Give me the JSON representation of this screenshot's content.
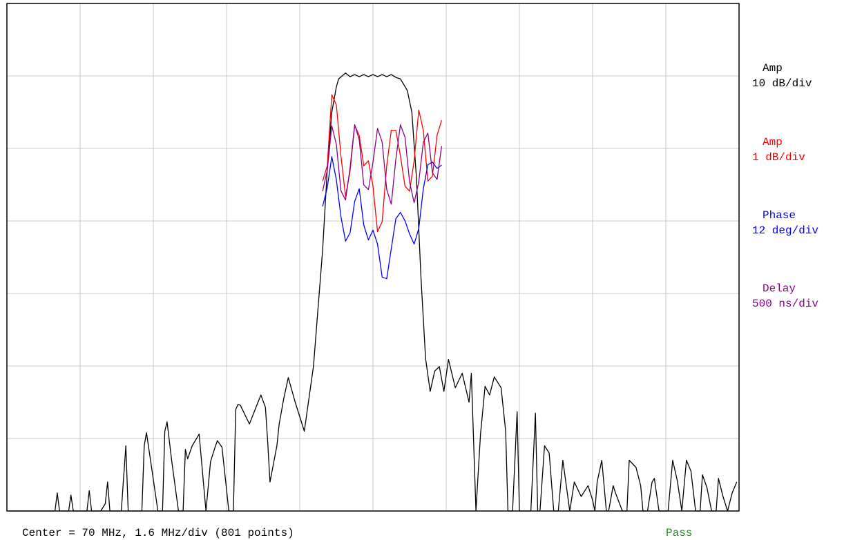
{
  "chart_data": {
    "type": "line",
    "title": "",
    "xlabel": "",
    "ylabel": "",
    "center_mhz": 70,
    "mhz_per_div": 1.6,
    "points": 801,
    "xlim_mhz": [
      62.0,
      78.0
    ],
    "grid": true,
    "legend": "right",
    "divisions": {
      "x": 10,
      "y": 7
    },
    "footer_text": "Center = 70 MHz, 1.6 MHz/div (801 points)",
    "status": {
      "text": "Pass",
      "color": "#228B22"
    },
    "scales": [
      {
        "name": "Amp",
        "unit": "10 dB/div",
        "color": "#000000"
      },
      {
        "name": "Amp",
        "unit": "1 dB/div",
        "color": "#FF0000"
      },
      {
        "name": "Phase",
        "unit": "12 deg/div",
        "color": "#0000FF"
      },
      {
        "name": "Delay",
        "unit": "500 ns/div",
        "color": "#8B008B"
      }
    ],
    "series": [
      {
        "name": "Amp",
        "color": "#000000",
        "unit": "dB",
        "ref_db": 0,
        "ylim": [
          -60,
          10
        ],
        "x": [
          62.05,
          62.35,
          62.4,
          62.45,
          62.55,
          62.7,
          62.9,
          63.05,
          63.1,
          63.15,
          63.25,
          63.35,
          63.4,
          63.45,
          63.6,
          63.75,
          63.8,
          63.85,
          63.95,
          64.05,
          64.15,
          64.2,
          64.25,
          64.35,
          64.5,
          64.55,
          64.6,
          64.65,
          64.8,
          64.95,
          65.0,
          65.05,
          65.15,
          65.3,
          65.4,
          65.45,
          65.5,
          65.6,
          65.75,
          65.85,
          65.9,
          65.95,
          66.05,
          66.2,
          66.35,
          66.45,
          66.55,
          66.6,
          66.7,
          66.85,
          66.95,
          67.0,
          67.05,
          67.1,
          67.3,
          67.55,
          67.65,
          67.7,
          67.75,
          67.9,
          67.95,
          68.05,
          68.15,
          68.3,
          68.5,
          68.7,
          68.9,
          69.0,
          69.1,
          69.2,
          69.25,
          69.4,
          69.5,
          69.6,
          69.7,
          69.8,
          69.9,
          70.0,
          70.1,
          70.2,
          70.3,
          70.4,
          70.5,
          70.6,
          70.75,
          70.85,
          70.95,
          71.05,
          71.15,
          71.25,
          71.35,
          71.45,
          71.55,
          71.65,
          71.8,
          71.95,
          72.1,
          72.15,
          72.25,
          72.35,
          72.45,
          72.55,
          72.65,
          72.8,
          72.9,
          72.95,
          73.0,
          73.05,
          73.15,
          73.2,
          73.35,
          73.45,
          73.55,
          73.6,
          73.65,
          73.75,
          73.85,
          73.95,
          74.05,
          74.15,
          74.3,
          74.4,
          74.55,
          74.7,
          74.8,
          74.85,
          74.9,
          75.0,
          75.1,
          75.15,
          75.25,
          75.3,
          75.45,
          75.55,
          75.6,
          75.75,
          75.85,
          75.9,
          76.0,
          76.1,
          76.15,
          76.25,
          76.35,
          76.45,
          76.55,
          76.65,
          76.75,
          76.85,
          76.95,
          77.05,
          77.15,
          77.2,
          77.3,
          77.4,
          77.5,
          77.55,
          77.65,
          77.75,
          77.85,
          77.95
        ],
        "y": [
          -60,
          -60,
          -60,
          -60,
          -60,
          -60,
          -60,
          -60,
          -57.5,
          -60,
          -60,
          -60,
          -57.8,
          -60,
          -60,
          -60,
          -57.2,
          -60,
          -60,
          -60,
          -59,
          -56,
          -60,
          -60,
          -60,
          -55.5,
          -51,
          -60,
          -60,
          -60,
          -51,
          -49.2,
          -53.5,
          -60,
          -60,
          -49,
          -47.7,
          -53,
          -60,
          -60,
          -51.5,
          -52.8,
          -51,
          -49.4,
          -60,
          -53.2,
          -51.2,
          -50.3,
          -51.2,
          -60,
          -60,
          -46,
          -45.3,
          -45.4,
          -48,
          -44,
          -45.7,
          -50.5,
          -56,
          -51,
          -48,
          -44.5,
          -41.6,
          -45,
          -49,
          -40,
          -24,
          -13,
          -5,
          -1.5,
          -0.4,
          0.4,
          -0.1,
          0.2,
          -0.1,
          0.2,
          -0.1,
          0.2,
          -0.1,
          0.2,
          -0.1,
          0.2,
          -0.2,
          -0.4,
          -2,
          -5,
          -14,
          -28,
          -39,
          -43.5,
          -40.7,
          -40.1,
          -43.5,
          -39.1,
          -43,
          -41,
          -45,
          -41,
          -60,
          -49.4,
          -42.8,
          -44,
          -41.5,
          -43,
          -49,
          -60,
          -60,
          -60,
          -46.3,
          -60,
          -60,
          -60,
          -46.5,
          -60,
          -60,
          -51,
          -52,
          -60,
          -60,
          -53,
          -60,
          -56,
          -58,
          -56.5,
          -58.5,
          -60,
          -56,
          -53,
          -60,
          -60,
          -56.5,
          -57.5,
          -60,
          -60,
          -53,
          -54,
          -56.5,
          -60,
          -60,
          -56,
          -55.5,
          -60,
          -60,
          -60,
          -53,
          -55.8,
          -60,
          -53,
          -54.5,
          -60,
          -60,
          -55,
          -56.8,
          -60,
          -60,
          -55.5,
          -58,
          -60,
          -57.5,
          -56
        ]
      },
      {
        "name": "Amp",
        "color": "#FF0000",
        "unit": "dB",
        "ref_db": -1,
        "ylim": [
          -8,
          2
        ],
        "x": [
          68.9,
          69.0,
          69.1,
          69.2,
          69.3,
          69.4,
          69.5,
          69.6,
          69.7,
          69.8,
          69.9,
          70.0,
          70.1,
          70.2,
          70.3,
          70.4,
          70.5,
          70.6,
          70.7,
          70.8,
          70.9,
          71.0,
          71.1,
          71.2,
          71.3,
          71.4,
          71.5
        ],
        "y": [
          -1.5,
          -1.2,
          0.2,
          0.0,
          -1.0,
          -1.8,
          -1.3,
          -0.4,
          -0.6,
          -1.2,
          -1.1,
          -1.6,
          -2.5,
          -2.3,
          -1.2,
          -0.5,
          -0.5,
          -1.0,
          -1.6,
          -1.7,
          -1.1,
          -0.1,
          -0.5,
          -1.5,
          -1.4,
          -0.6,
          -0.3
        ]
      },
      {
        "name": "Phase",
        "color": "#0000FF",
        "unit": "deg",
        "ref_deg": 0,
        "ylim": [
          -84,
          36
        ],
        "x": [
          68.9,
          69.0,
          69.1,
          69.2,
          69.3,
          69.4,
          69.5,
          69.6,
          69.7,
          69.8,
          69.9,
          70.0,
          70.1,
          70.2,
          70.3,
          70.4,
          70.5,
          70.6,
          70.7,
          70.8,
          70.9,
          71.0,
          71.1,
          71.2,
          71.3,
          71.4,
          71.5
        ],
        "y": [
          -12.0,
          -7.6,
          -0.2,
          -5.7,
          -14.4,
          -20.2,
          -18.2,
          -10.8,
          -7.8,
          -16.4,
          -19.9,
          -17.6,
          -20.9,
          -28.7,
          -29.1,
          -22.0,
          -14.9,
          -13.4,
          -15.4,
          -18.5,
          -20.9,
          -17.2,
          -7.8,
          -2.1,
          -1.5,
          -3.0,
          -2.2
        ]
      },
      {
        "name": "Delay",
        "color": "#8B008B",
        "unit": "ns",
        "ref_ns": 0,
        "ylim": [
          -3500,
          1500
        ],
        "x": [
          68.9,
          69.0,
          69.1,
          69.2,
          69.3,
          69.4,
          69.5,
          69.6,
          69.7,
          69.8,
          69.9,
          70.0,
          70.1,
          70.2,
          70.3,
          70.4,
          70.5,
          70.6,
          70.7,
          70.8,
          70.9,
          71.0,
          71.1,
          71.2,
          71.3,
          71.4,
          71.5
        ],
        "y": [
          -350,
          -145,
          293,
          111,
          -345,
          -437,
          -116,
          306,
          157,
          -287,
          -335,
          -64,
          269,
          134,
          -332,
          -478,
          -36,
          305,
          184,
          -258,
          -463,
          -257,
          133,
          223,
          -169,
          -234,
          95
        ]
      }
    ]
  }
}
